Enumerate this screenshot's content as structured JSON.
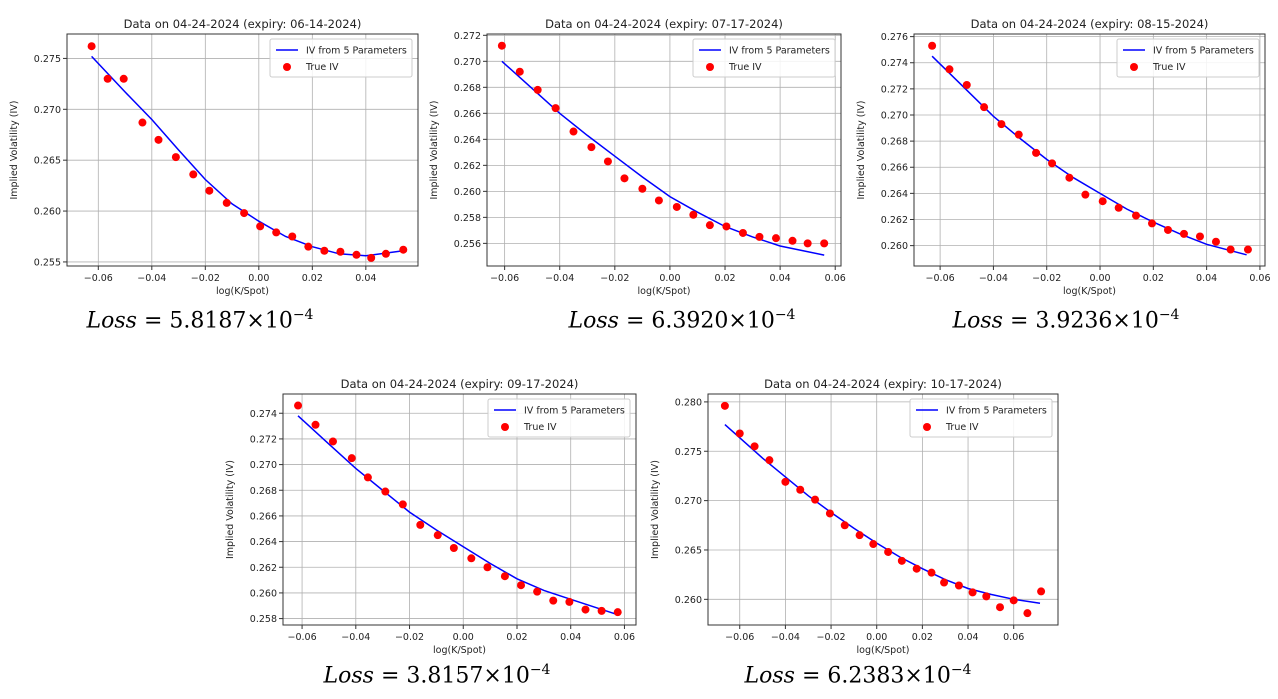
{
  "chart_data": [
    {
      "type": "line",
      "title": "Data on 04-24-2024 (expiry: 06-14-2024)",
      "xlabel": "log(K/Spot)",
      "ylabel": "Implied Volatility (IV)",
      "xlim": [
        -0.0717,
        0.0595
      ],
      "ylim": [
        0.2546,
        0.2774
      ],
      "xticks": [
        "-0.06",
        "-0.04",
        "-0.02",
        "0.00",
        "0.02",
        "0.04"
      ],
      "yticks": [
        "0.255",
        "0.260",
        "0.265",
        "0.270",
        "0.275"
      ],
      "grid": true,
      "legend": {
        "position": "top-right",
        "entries": [
          "IV from 5 Parameters",
          "True IV"
        ]
      },
      "series": [
        {
          "name": "IV from 5 Parameters",
          "kind": "line",
          "color": "#0000ff",
          "x": [
            -0.0625,
            -0.05,
            -0.04,
            -0.03,
            -0.02,
            -0.01,
            0,
            0.01,
            0.02,
            0.03,
            0.04,
            0.054
          ],
          "y": [
            0.2752,
            0.2717,
            0.269,
            0.266,
            0.2631,
            0.2607,
            0.259,
            0.2575,
            0.2565,
            0.2558,
            0.2556,
            0.2561
          ]
        },
        {
          "name": "True IV",
          "kind": "scatter",
          "color": "#ff0000",
          "x": [
            -0.0625,
            -0.0565,
            -0.0505,
            -0.0435,
            -0.0375,
            -0.031,
            -0.0245,
            -0.0185,
            -0.012,
            -0.0055,
            0.0005,
            0.0065,
            0.0125,
            0.0185,
            0.0245,
            0.0305,
            0.0365,
            0.042,
            0.0475,
            0.054
          ],
          "y": [
            0.2762,
            0.273,
            0.273,
            0.2687,
            0.267,
            0.2653,
            0.2636,
            0.262,
            0.2608,
            0.2598,
            0.2585,
            0.2579,
            0.2575,
            0.2565,
            0.2561,
            0.256,
            0.2557,
            0.2554,
            0.2558,
            0.2562
          ]
        }
      ],
      "loss": {
        "label": "Loss",
        "eq": "= 5.8187×10",
        "exp": "−4"
      }
    },
    {
      "type": "line",
      "title": "Data on 04-24-2024 (expiry: 07-17-2024)",
      "xlabel": "log(K/Spot)",
      "ylabel": "Implied Volatility (IV)",
      "xlim": [
        -0.0664,
        0.0621
      ],
      "ylim": [
        0.25426,
        0.2721
      ],
      "xticks": [
        "-0.06",
        "-0.04",
        "-0.02",
        "0.00",
        "0.02",
        "0.04",
        "0.06"
      ],
      "yticks": [
        "0.256",
        "0.258",
        "0.260",
        "0.262",
        "0.264",
        "0.266",
        "0.268",
        "0.270",
        "0.272"
      ],
      "grid": true,
      "legend": {
        "position": "top-right",
        "entries": [
          "IV from 5 Parameters",
          "True IV"
        ]
      },
      "series": [
        {
          "name": "IV from 5 Parameters",
          "kind": "line",
          "color": "#0000ff",
          "x": [
            -0.061,
            -0.05,
            -0.04,
            -0.03,
            -0.02,
            -0.01,
            0,
            0.01,
            0.02,
            0.03,
            0.04,
            0.056
          ],
          "y": [
            0.27,
            0.2679,
            0.266,
            0.2643,
            0.2627,
            0.2611,
            0.2596,
            0.2584,
            0.2573,
            0.2565,
            0.2558,
            0.2551
          ]
        },
        {
          "name": "True IV",
          "kind": "scatter",
          "color": "#ff0000",
          "x": [
            -0.061,
            -0.0545,
            -0.048,
            -0.0415,
            -0.035,
            -0.0285,
            -0.0225,
            -0.0165,
            -0.01,
            -0.004,
            0.0025,
            0.0085,
            0.0145,
            0.0205,
            0.0265,
            0.0325,
            0.0385,
            0.0445,
            0.05,
            0.056
          ],
          "y": [
            0.2712,
            0.2692,
            0.2678,
            0.2664,
            0.2646,
            0.2634,
            0.2623,
            0.261,
            0.2602,
            0.2593,
            0.2588,
            0.2582,
            0.2574,
            0.2573,
            0.2568,
            0.2565,
            0.2564,
            0.2562,
            0.256,
            0.256
          ]
        }
      ],
      "loss": {
        "label": "Loss",
        "eq": "= 6.3920×10",
        "exp": "−4"
      }
    },
    {
      "type": "line",
      "title": "Data on 04-24-2024 (expiry: 08-15-2024)",
      "xlabel": "log(K/Spot)",
      "ylabel": "Implied Volatility (IV)",
      "xlim": [
        -0.0698,
        0.0619
      ],
      "ylim": [
        0.25844,
        0.2762
      ],
      "xticks": [
        "-0.06",
        "-0.04",
        "-0.02",
        "0.00",
        "0.02",
        "0.04",
        "0.06"
      ],
      "yticks": [
        "0.260",
        "0.262",
        "0.264",
        "0.266",
        "0.268",
        "0.270",
        "0.272",
        "0.274",
        "0.276"
      ],
      "grid": true,
      "legend": {
        "position": "top-right",
        "entries": [
          "IV from 5 Parameters",
          "True IV"
        ]
      },
      "series": [
        {
          "name": "IV from 5 Parameters",
          "kind": "line",
          "color": "#0000ff",
          "x": [
            -0.063,
            -0.05,
            -0.04,
            -0.03,
            -0.02,
            -0.01,
            0,
            0.01,
            0.02,
            0.03,
            0.04,
            0.055
          ],
          "y": [
            0.2745,
            0.2719,
            0.2699,
            0.2682,
            0.2666,
            0.2652,
            0.264,
            0.2628,
            0.2618,
            0.2609,
            0.2601,
            0.2593
          ]
        },
        {
          "name": "True IV",
          "kind": "scatter",
          "color": "#ff0000",
          "x": [
            -0.063,
            -0.0565,
            -0.05,
            -0.0435,
            -0.037,
            -0.0305,
            -0.024,
            -0.018,
            -0.0115,
            -0.0055,
            0.001,
            0.007,
            0.0135,
            0.0195,
            0.0255,
            0.0315,
            0.0375,
            0.0435,
            0.049,
            0.0555
          ],
          "y": [
            0.2753,
            0.2735,
            0.2723,
            0.2706,
            0.2693,
            0.2685,
            0.2671,
            0.2663,
            0.2652,
            0.2639,
            0.2634,
            0.2629,
            0.2623,
            0.2617,
            0.2612,
            0.2609,
            0.2607,
            0.2603,
            0.2597,
            0.2597
          ]
        }
      ],
      "loss": {
        "label": "Loss",
        "eq": "= 3.9236×10",
        "exp": "−4"
      }
    },
    {
      "type": "line",
      "title": "Data on 04-24-2024 (expiry: 09-17-2024)",
      "xlabel": "log(K/Spot)",
      "ylabel": "Implied Volatility (IV)",
      "xlim": [
        -0.0671,
        0.0643
      ],
      "ylim": [
        0.2575,
        0.2755
      ],
      "xticks": [
        "-0.06",
        "-0.04",
        "-0.02",
        "0.00",
        "0.02",
        "0.04",
        "0.06"
      ],
      "yticks": [
        "0.258",
        "0.260",
        "0.262",
        "0.264",
        "0.266",
        "0.268",
        "0.270",
        "0.272",
        "0.274"
      ],
      "grid": true,
      "legend": {
        "position": "top-right",
        "entries": [
          "IV from 5 Parameters",
          "True IV"
        ]
      },
      "series": [
        {
          "name": "IV from 5 Parameters",
          "kind": "line",
          "color": "#0000ff",
          "x": [
            -0.0615,
            -0.05,
            -0.04,
            -0.03,
            -0.02,
            -0.01,
            0,
            0.01,
            0.02,
            0.03,
            0.04,
            0.0575
          ],
          "y": [
            0.2738,
            0.2716,
            0.2697,
            0.268,
            0.2663,
            0.2649,
            0.2636,
            0.2623,
            0.2611,
            0.2602,
            0.2595,
            0.2583
          ]
        },
        {
          "name": "True IV",
          "kind": "scatter",
          "color": "#ff0000",
          "x": [
            -0.0615,
            -0.055,
            -0.0485,
            -0.0415,
            -0.0355,
            -0.029,
            -0.0225,
            -0.016,
            -0.0095,
            -0.0035,
            0.003,
            0.009,
            0.0155,
            0.0215,
            0.0275,
            0.0335,
            0.0395,
            0.0455,
            0.0515,
            0.0575
          ],
          "y": [
            0.2746,
            0.2731,
            0.2718,
            0.2705,
            0.269,
            0.2679,
            0.2669,
            0.2653,
            0.2645,
            0.2635,
            0.2627,
            0.262,
            0.2613,
            0.2606,
            0.2601,
            0.2594,
            0.2593,
            0.2587,
            0.2586,
            0.2585
          ]
        }
      ],
      "loss": {
        "label": "Loss",
        "eq": "= 3.8157×10",
        "exp": "−4"
      }
    },
    {
      "type": "line",
      "title": "Data on 04-24-2024 (expiry: 10-17-2024)",
      "xlabel": "log(K/Spot)",
      "ylabel": "Implied Volatility (IV)",
      "xlim": [
        -0.0739,
        0.0794
      ],
      "ylim": [
        0.2574,
        0.2808
      ],
      "xticks": [
        "-0.06",
        "-0.04",
        "-0.02",
        "0.00",
        "0.02",
        "0.04",
        "0.06"
      ],
      "yticks": [
        "0.260",
        "0.265",
        "0.270",
        "0.275",
        "0.280"
      ],
      "grid": true,
      "legend": {
        "position": "top-right",
        "entries": [
          "IV from 5 Parameters",
          "True IV"
        ]
      },
      "series": [
        {
          "name": "IV from 5 Parameters",
          "kind": "line",
          "color": "#0000ff",
          "x": [
            -0.0665,
            -0.05,
            -0.04,
            -0.03,
            -0.02,
            -0.01,
            0,
            0.01,
            0.02,
            0.03,
            0.04,
            0.05,
            0.06,
            0.0715
          ],
          "y": [
            0.2777,
            0.2743,
            0.2724,
            0.2705,
            0.2688,
            0.2672,
            0.2657,
            0.2643,
            0.2631,
            0.262,
            0.2611,
            0.2605,
            0.26,
            0.2596
          ]
        },
        {
          "name": "True IV",
          "kind": "scatter",
          "color": "#ff0000",
          "x": [
            -0.0665,
            -0.06,
            -0.0535,
            -0.047,
            -0.04,
            -0.0335,
            -0.027,
            -0.0205,
            -0.014,
            -0.0075,
            -0.0015,
            0.005,
            0.011,
            0.0175,
            0.024,
            0.0295,
            0.036,
            0.042,
            0.048,
            0.054,
            0.06,
            0.066,
            0.072
          ],
          "y": [
            0.2796,
            0.2768,
            0.2755,
            0.2741,
            0.2719,
            0.2711,
            0.2701,
            0.2687,
            0.2675,
            0.2665,
            0.2656,
            0.2648,
            0.2639,
            0.2631,
            0.2627,
            0.2617,
            0.2614,
            0.2607,
            0.2603,
            0.2592,
            0.2599,
            0.2586,
            0.2608
          ]
        }
      ],
      "loss": {
        "label": "Loss",
        "eq": "= 6.2383×10",
        "exp": "−4"
      }
    }
  ]
}
